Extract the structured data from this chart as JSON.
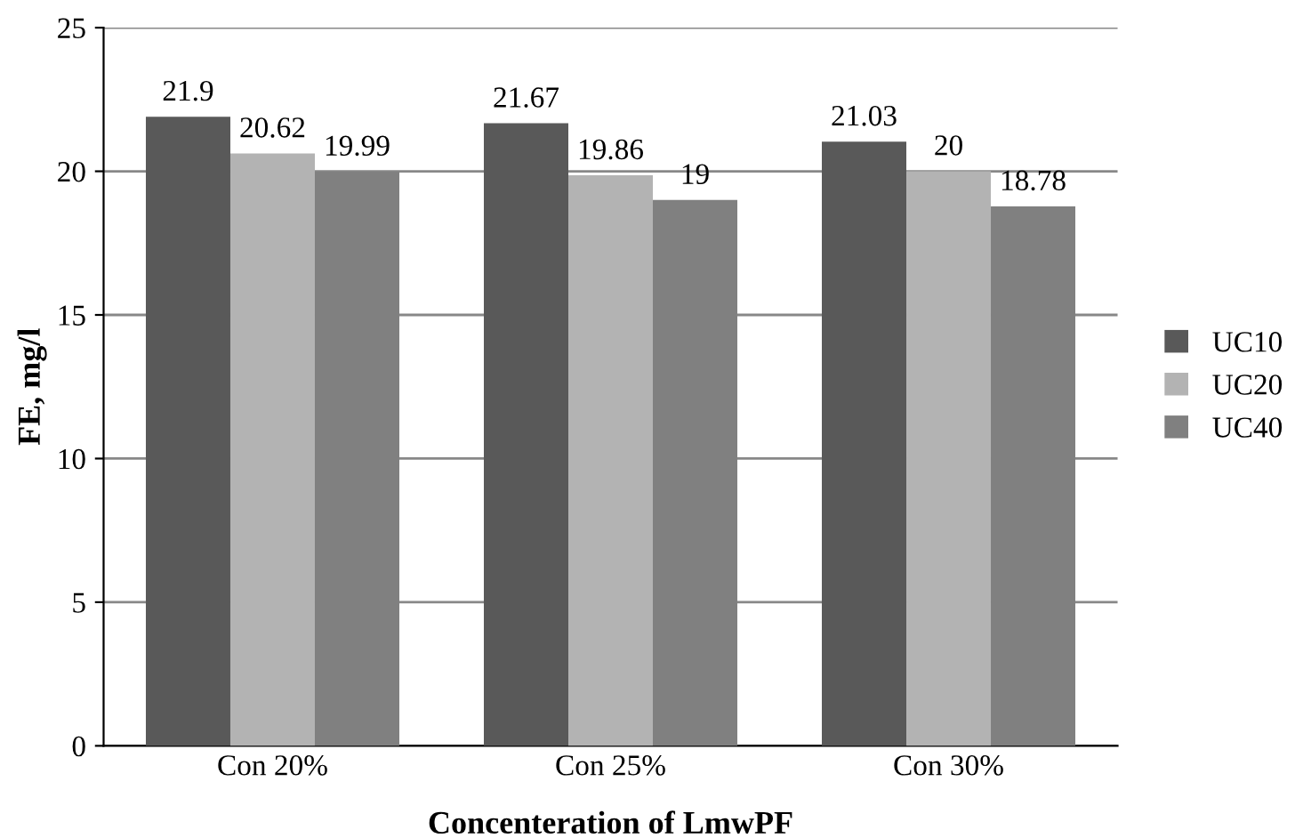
{
  "chart_data": {
    "type": "bar",
    "xlabel": "Concenteration of LmwPF",
    "ylabel": "FE, mg/l",
    "categories": [
      "Con 20%",
      "Con 25%",
      "Con 30%"
    ],
    "series": [
      {
        "name": "UC10",
        "color": "#595959",
        "values": [
          21.9,
          21.67,
          21.03
        ]
      },
      {
        "name": "UC20",
        "color": "#b3b3b3",
        "values": [
          20.62,
          19.86,
          20
        ]
      },
      {
        "name": "UC40",
        "color": "#808080",
        "values": [
          19.99,
          19,
          18.78
        ]
      }
    ],
    "ylim": [
      0,
      25
    ],
    "yticks": [
      0,
      5,
      10,
      15,
      20,
      25
    ],
    "grid": "y",
    "legend": "right",
    "data_labels": true
  }
}
